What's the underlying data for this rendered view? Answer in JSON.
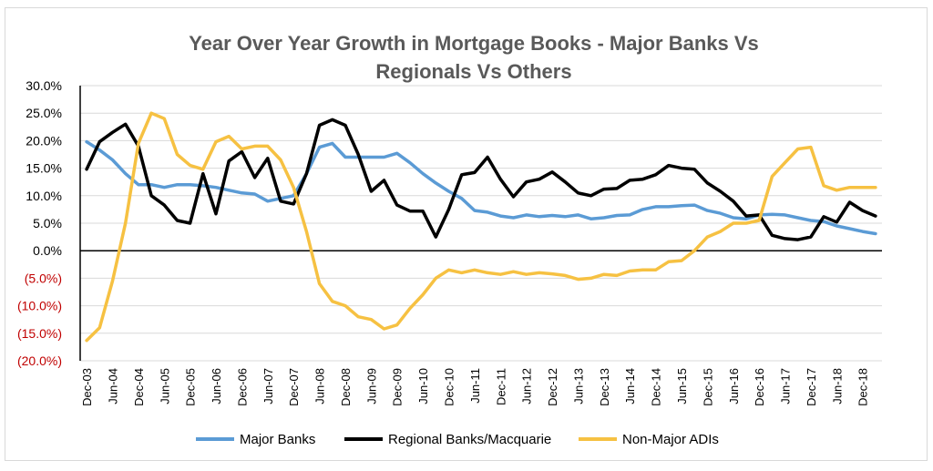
{
  "chart_data": {
    "type": "line",
    "title_line1": "Year Over Year Growth in Mortgage Books - Major Banks Vs",
    "title_line2": "Regionals Vs Others",
    "xlabel": "",
    "ylabel": "",
    "ylim": [
      -20,
      30
    ],
    "grid": "horizontal",
    "legend_position": "bottom",
    "negative_label_color": "#c00000",
    "y_ticks": [
      {
        "value": 30,
        "label": "30.0%"
      },
      {
        "value": 25,
        "label": "25.0%"
      },
      {
        "value": 20,
        "label": "20.0%"
      },
      {
        "value": 15,
        "label": "15.0%"
      },
      {
        "value": 10,
        "label": "10.0%"
      },
      {
        "value": 5,
        "label": "5.0%"
      },
      {
        "value": 0,
        "label": "0.0%"
      },
      {
        "value": -5,
        "label": "(5.0%)"
      },
      {
        "value": -10,
        "label": "(10.0%)"
      },
      {
        "value": -15,
        "label": "(15.0%)"
      },
      {
        "value": -20,
        "label": "(20.0%)"
      }
    ],
    "x_tick_labels": [
      "Dec-03",
      "Jun-04",
      "Dec-04",
      "Jun-05",
      "Dec-05",
      "Jun-06",
      "Dec-06",
      "Jun-07",
      "Dec-07",
      "Jun-08",
      "Dec-08",
      "Jun-09",
      "Dec-09",
      "Jun-10",
      "Dec-10",
      "Jun-11",
      "Dec-11",
      "Jun-12",
      "Dec-12",
      "Jun-13",
      "Dec-13",
      "Jun-14",
      "Dec-14",
      "Jun-15",
      "Dec-15",
      "Jun-16",
      "Dec-16",
      "Jun-17",
      "Dec-17",
      "Jun-18",
      "Dec-18"
    ],
    "x_period": "quarterly",
    "series": [
      {
        "name": "Major Banks",
        "color": "#5b9bd5",
        "values": [
          19.8,
          18.3,
          16.5,
          14,
          12,
          12,
          11.5,
          12,
          12,
          11.8,
          11.5,
          11,
          10.5,
          10.3,
          9,
          9.5,
          10,
          14,
          18.8,
          19.5,
          17,
          17,
          17,
          17,
          17.7,
          16,
          14,
          12.3,
          10.8,
          9.5,
          7.3,
          7,
          6.3,
          6,
          6.5,
          6.2,
          6.4,
          6.2,
          6.5,
          5.8,
          6,
          6.4,
          6.5,
          7.5,
          8,
          8,
          8.2,
          8.3,
          7.3,
          6.8,
          6,
          5.8,
          6.5,
          6.6,
          6.5,
          6,
          5.5,
          5.3,
          4.5,
          4,
          3.5,
          3.1
        ]
      },
      {
        "name": "Regional Banks/Macquarie",
        "color": "#000000",
        "values": [
          14.8,
          19.8,
          21.5,
          23,
          19,
          10,
          8.3,
          5.5,
          5,
          14,
          6.7,
          16.3,
          18,
          13.3,
          16.8,
          9,
          8.5,
          14,
          22.8,
          23.8,
          22.8,
          17.5,
          10.8,
          12.8,
          8.3,
          7.2,
          7.2,
          2.5,
          7.5,
          13.8,
          14.2,
          17,
          13,
          9.8,
          12.5,
          13,
          14.3,
          12.5,
          10.5,
          10,
          11.2,
          11.3,
          12.8,
          13,
          13.8,
          15.5,
          15,
          14.8,
          12.3,
          10.8,
          9,
          6.3,
          6.5,
          2.8,
          2.2,
          2,
          2.5,
          6.2,
          5.2,
          8.8,
          7.3,
          6.3
        ]
      },
      {
        "name": "Non-Major ADIs",
        "color": "#f6c142",
        "values": [
          -16.3,
          -14,
          -5.5,
          5,
          19.5,
          25,
          24,
          17.5,
          15.5,
          14.8,
          19.8,
          20.8,
          18.5,
          19,
          19,
          16.5,
          11.5,
          3.5,
          -6,
          -9.2,
          -10,
          -12,
          -12.5,
          -14.2,
          -13.5,
          -10.5,
          -8,
          -5,
          -3.5,
          -4,
          -3.5,
          -4,
          -4.3,
          -3.8,
          -4.3,
          -4,
          -4.2,
          -4.5,
          -5.2,
          -5,
          -4.3,
          -4.5,
          -3.7,
          -3.5,
          -3.5,
          -2,
          -1.8,
          0,
          2.5,
          3.5,
          5,
          5,
          5.5,
          13.5,
          16,
          18.5,
          18.8,
          11.8,
          11,
          11.5,
          11.5,
          11.5
        ]
      }
    ]
  }
}
